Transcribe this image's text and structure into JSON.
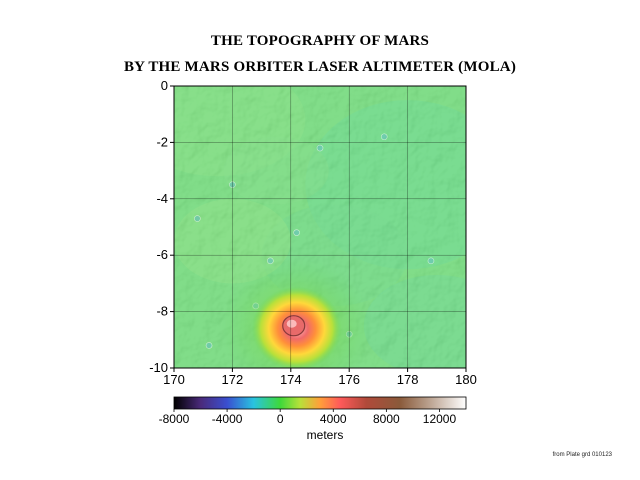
{
  "title_line1": "THE TOPOGRAPHY OF MARS",
  "title_line2": "BY THE MARS ORBITER LASER ALTIMETER (MOLA)",
  "map": {
    "x_axis": {
      "min": 170,
      "max": 180,
      "ticks": [
        170,
        172,
        174,
        176,
        178,
        180
      ]
    },
    "y_axis": {
      "min": -10,
      "max": 0,
      "ticks": [
        0,
        -2,
        -4,
        -6,
        -8,
        -10
      ]
    },
    "grid": true,
    "features": {
      "volcano_center": [
        174.2,
        -8.6
      ],
      "caldera_center": [
        174.1,
        -8.5
      ]
    }
  },
  "colorbar": {
    "min": -8000,
    "max": 14000,
    "tick_labels": [
      "-8000",
      "-4000",
      "0",
      "4000",
      "8000",
      "12000"
    ],
    "tick_values": [
      -8000,
      -4000,
      0,
      4000,
      8000,
      12000
    ],
    "units": "meters",
    "stops": [
      {
        "value": -8000,
        "color": "#000000"
      },
      {
        "value": -6000,
        "color": "#4a2a7a"
      },
      {
        "value": -4000,
        "color": "#3a4fd0"
      },
      {
        "value": -2000,
        "color": "#29c3e0"
      },
      {
        "value": 0,
        "color": "#3ed93a"
      },
      {
        "value": 1500,
        "color": "#b8e03a"
      },
      {
        "value": 3000,
        "color": "#ff9f3a"
      },
      {
        "value": 4500,
        "color": "#ff5a5a"
      },
      {
        "value": 6500,
        "color": "#b04a3a"
      },
      {
        "value": 9000,
        "color": "#8a5a3a"
      },
      {
        "value": 11000,
        "color": "#b59a86"
      },
      {
        "value": 14000,
        "color": "#ffffff"
      }
    ]
  },
  "credit": "from Plate grd 010123"
}
